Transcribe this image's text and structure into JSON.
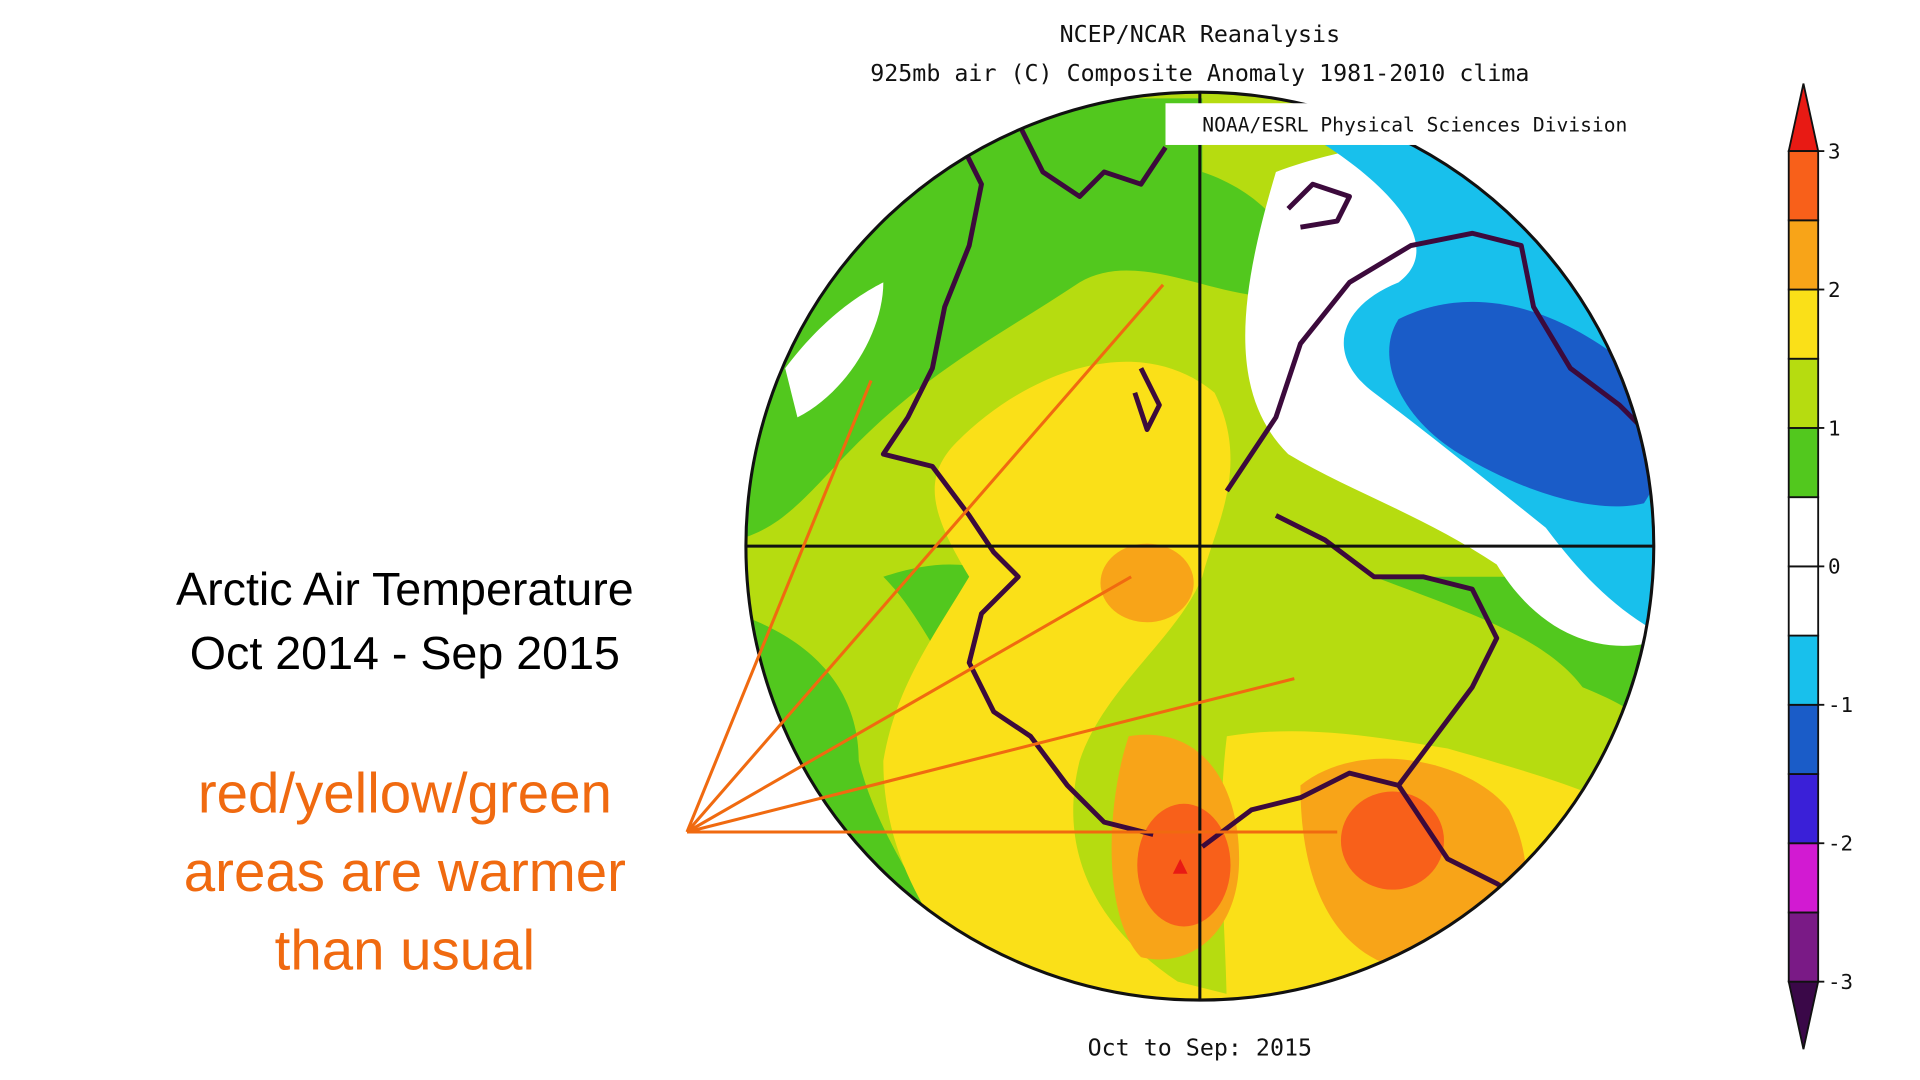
{
  "header": {
    "title": "NCEP/NCAR Reanalysis",
    "subtitle": "925mb air (C) Composite Anomaly 1981-2010 clima",
    "credit": "NOAA/ESRL Physical Sciences Division"
  },
  "annotation": {
    "heading": [
      "Arctic Air Temperature",
      "Oct 2014 - Sep 2015"
    ],
    "note": [
      "red/yellow/green",
      "areas are warmer",
      "than usual"
    ]
  },
  "colorbar": {
    "lim": [
      -3,
      3
    ],
    "ticks": [
      3,
      2,
      1,
      0,
      -1,
      -2,
      -3
    ],
    "colors": [
      "#3a0848",
      "#7a1a86",
      "#d21ad2",
      "#3a20d8",
      "#1a5cc8",
      "#18c0ec",
      "#ffffff",
      "#ffffff",
      "#52c81e",
      "#b6dc10",
      "#fae018",
      "#f8a418",
      "#f8601a",
      "#e81a14"
    ]
  },
  "footer": {
    "period": "Oct to Sep: 2015"
  }
}
